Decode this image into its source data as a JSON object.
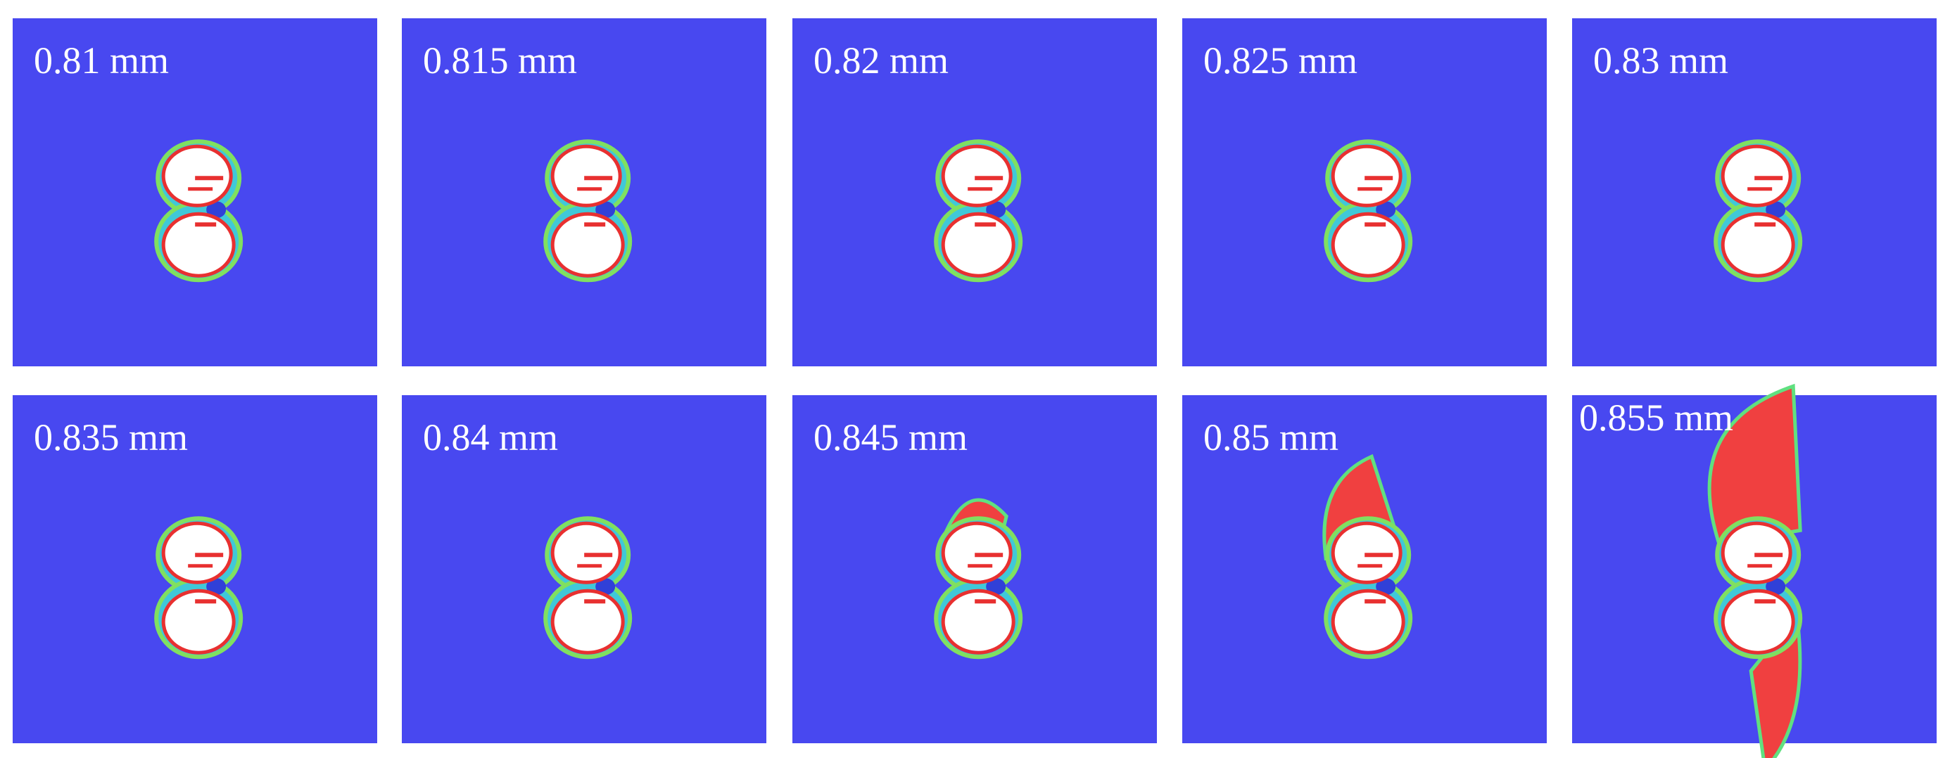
{
  "panels": [
    {
      "label": "0.81 mm"
    },
    {
      "label": "0.815 mm"
    },
    {
      "label": "0.82 mm"
    },
    {
      "label": "0.825 mm"
    },
    {
      "label": "0.83 mm"
    },
    {
      "label": "0.835 mm"
    },
    {
      "label": "0.84 mm"
    },
    {
      "label": "0.845 mm"
    },
    {
      "label": "0.85 mm"
    },
    {
      "label": "0.855 mm"
    }
  ]
}
